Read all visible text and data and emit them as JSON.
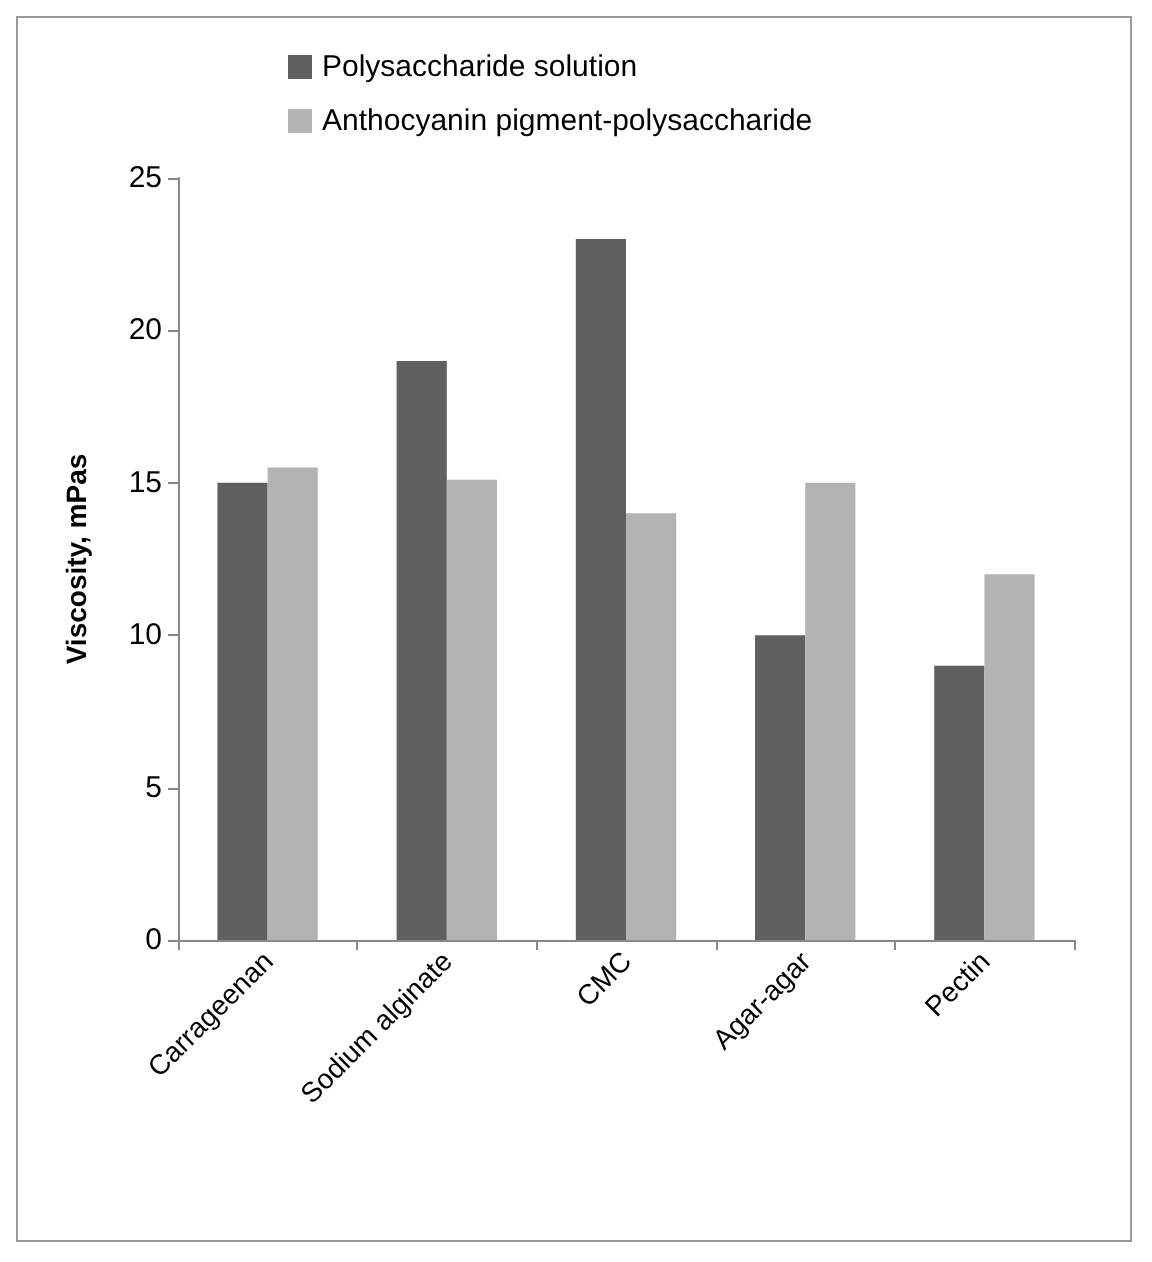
{
  "chart_data": {
    "type": "bar",
    "ylabel": "Viscosity, mPas",
    "categories": [
      "Carrageenan",
      "Sodium alginate",
      "CMC",
      "Agar-agar",
      "Pectin"
    ],
    "series": [
      {
        "name": "Polysaccharide solution",
        "color": "#606060",
        "values": [
          15,
          19,
          23,
          10,
          9
        ]
      },
      {
        "name": "Anthocyanin pigment-polysaccharide",
        "color": "#b3b3b3",
        "values": [
          15.5,
          15.1,
          14,
          15,
          12
        ]
      }
    ],
    "ylim": [
      0,
      25
    ],
    "yticks": [
      0,
      5,
      10,
      15,
      20,
      25
    ],
    "grid": false,
    "legend": "top"
  }
}
